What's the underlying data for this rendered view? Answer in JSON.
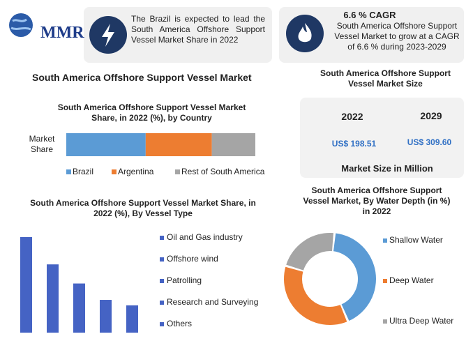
{
  "logo": {
    "text": "MMR"
  },
  "highlights": [
    {
      "text": "The Brazil is expected to lead the South America Offshore Support Vessel Market Share in 2022"
    },
    {
      "title": "6.6 % CAGR",
      "text": "South America Offshore Support Vessel Market to grow at a CAGR of 6.6 % during 2023-2029"
    }
  ],
  "main_title": "South America Offshore Support Vessel Market",
  "market_size": {
    "title": "South America Offshore Support Vessel Market Size",
    "years": [
      "2022",
      "2029"
    ],
    "values": [
      "US$ 198.51",
      "US$ 309.60"
    ],
    "caption": "Market Size in Million"
  },
  "chart_data": [
    {
      "type": "stacked-bar",
      "title": "South America Offshore Support Vessel Market Share, in 2022 (%), by Country",
      "categories": [
        "Market Share"
      ],
      "series": [
        {
          "name": "Brazil",
          "color": "#5b9bd5",
          "values": [
            42
          ]
        },
        {
          "name": "Argentina",
          "color": "#ed7d31",
          "values": [
            35
          ]
        },
        {
          "name": "Rest of South America",
          "color": "#a5a5a5",
          "values": [
            23
          ]
        }
      ],
      "legend": "bottom"
    },
    {
      "type": "bar",
      "title": "South America Offshore Support Vessel Market Share, in 2022 (%), By Vessel Type",
      "categories": [
        "Oil and Gas industry",
        "Offshore wind",
        "Patrolling",
        "Research and Surveying",
        "Others"
      ],
      "values": [
        35,
        25,
        18,
        12,
        10
      ],
      "color": "#4563c4",
      "legend": "right"
    },
    {
      "type": "pie",
      "donut": true,
      "title": "South America Offshore Support Vessel Market, By Water Depth (in %) in 2022",
      "categories": [
        "Shallow Water",
        "Deep Water",
        "Ultra Deep Water"
      ],
      "values": [
        42,
        36,
        22
      ],
      "colors": [
        "#5b9bd5",
        "#ed7d31",
        "#a5a5a5"
      ],
      "legend": "right"
    }
  ]
}
